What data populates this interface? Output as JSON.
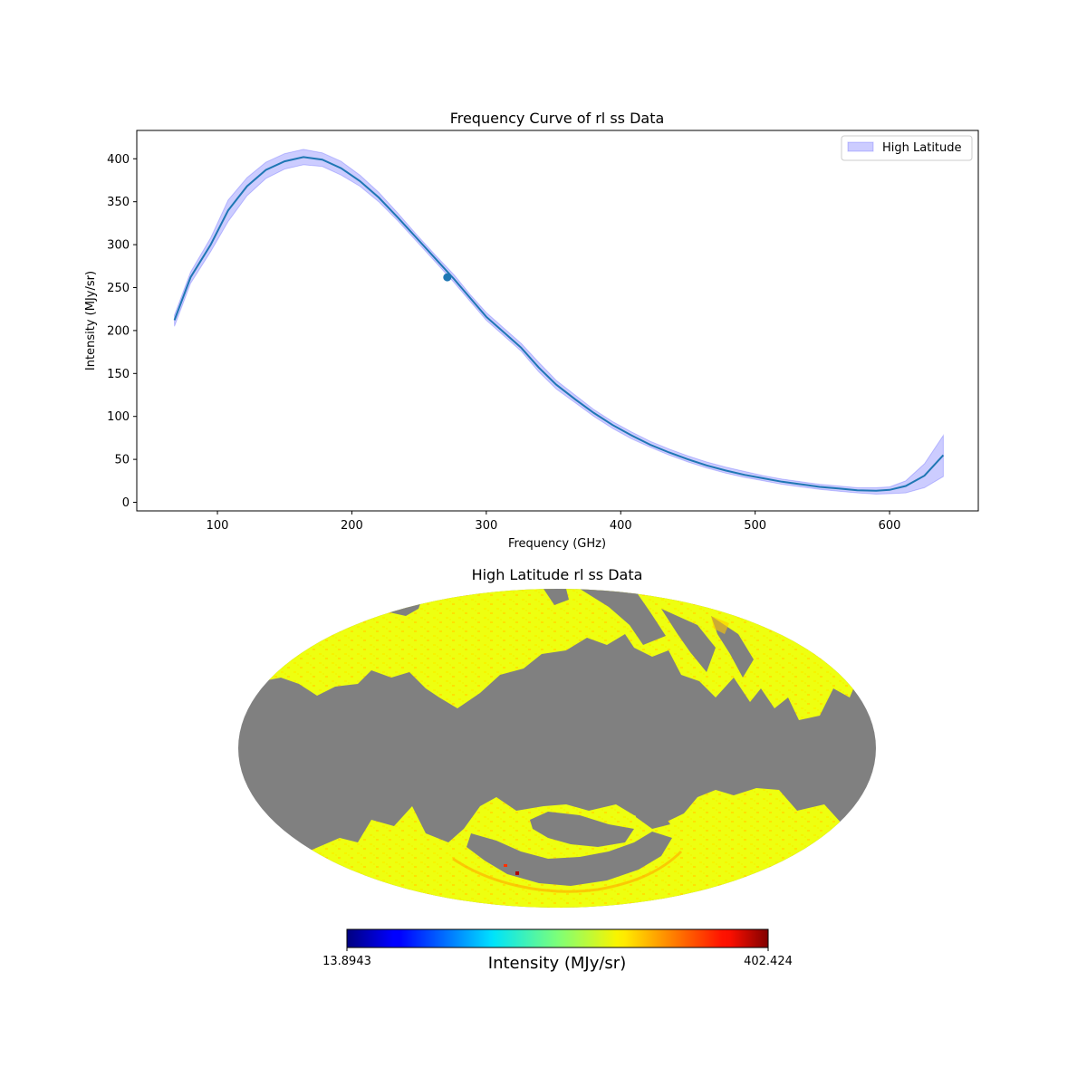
{
  "chart_data": [
    {
      "type": "line",
      "title": "Frequency Curve of rl ss Data",
      "xlabel": "Frequency (GHz)",
      "ylabel": "Intensity (MJy/sr)",
      "xlim": [
        40,
        666
      ],
      "ylim": [
        -10,
        433
      ],
      "xticks": [
        100,
        200,
        300,
        400,
        500,
        600
      ],
      "yticks": [
        0,
        50,
        100,
        150,
        200,
        250,
        300,
        350,
        400
      ],
      "grid": false,
      "legend_position": "top-right",
      "series": [
        {
          "name": "",
          "color": "#1f77b4",
          "x": [
            68,
            80,
            95,
            108,
            122,
            136,
            150,
            164,
            178,
            192,
            206,
            220,
            234,
            248,
            262,
            276,
            288,
            300,
            313,
            326,
            339,
            352,
            366,
            380,
            394,
            408,
            422,
            436,
            450,
            464,
            478,
            492,
            506,
            520,
            534,
            548,
            562,
            576,
            590,
            600,
            612,
            626,
            640
          ],
          "y": [
            212,
            262,
            300,
            340,
            368,
            387,
            397,
            402,
            399,
            389,
            374,
            355,
            332,
            308,
            284,
            260,
            238,
            216,
            198,
            180,
            157,
            137,
            120,
            104,
            90,
            78,
            67,
            58,
            50,
            43,
            37,
            32,
            28,
            24,
            21,
            18,
            16,
            14,
            13.5,
            14.5,
            19,
            31,
            55
          ],
          "band_lower": [
            205,
            255,
            292,
            327,
            357,
            377,
            388,
            393,
            391,
            381,
            368,
            350,
            328,
            304,
            280,
            256,
            234,
            212,
            194,
            176,
            152,
            132,
            116,
            100,
            86,
            74,
            64,
            55,
            47,
            40,
            34,
            29,
            25,
            21,
            18,
            15,
            13,
            11,
            9.5,
            10,
            11,
            17,
            30
          ],
          "band_upper": [
            218,
            268,
            308,
            352,
            378,
            396,
            406,
            411,
            407,
            397,
            381,
            361,
            337,
            312,
            288,
            265,
            242,
            221,
            203,
            185,
            163,
            142,
            125,
            108,
            94,
            82,
            71,
            62,
            54,
            47,
            41,
            36,
            31,
            27,
            24,
            21,
            19,
            17,
            17,
            18,
            25,
            45,
            78
          ]
        }
      ],
      "band": {
        "name": "High Latitude",
        "color": "#0000ff",
        "opacity": 0.2
      },
      "marker": {
        "x": 271,
        "y": 262,
        "color": "#1f77b4"
      }
    },
    {
      "type": "heatmap",
      "title": "High Latitude rl ss Data",
      "projection": "mollweide",
      "colormap": "jet",
      "masked_color": "#808080",
      "colorbar": {
        "label": "Intensity (MJy/sr)",
        "min_label": "13.8943",
        "max_label": "402.424"
      }
    }
  ]
}
